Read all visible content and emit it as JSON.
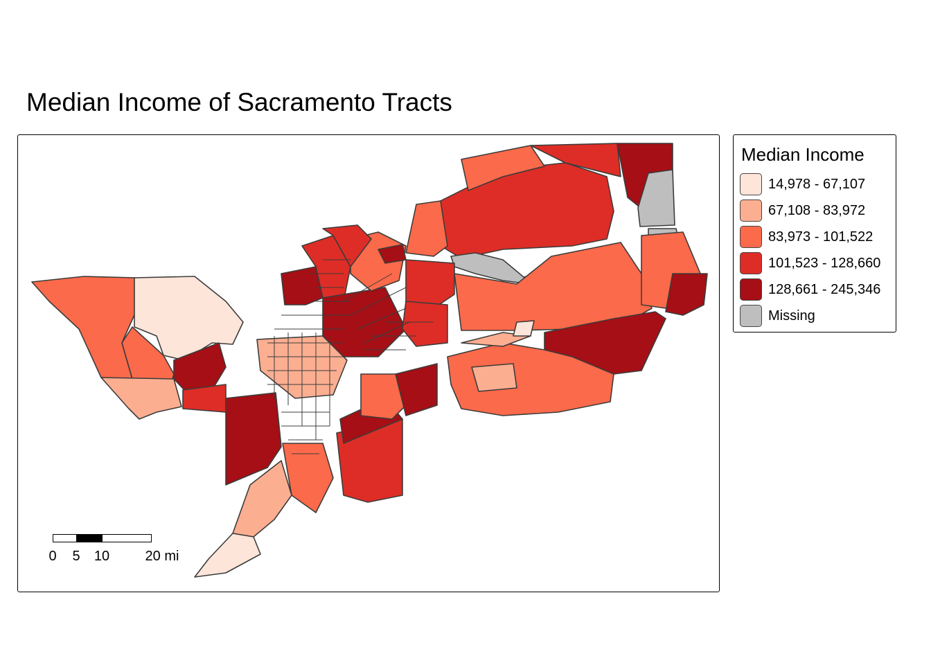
{
  "title": "Median Income of Sacramento Tracts",
  "legend": {
    "title": "Median Income",
    "items": [
      {
        "label": "14,978 - 67,107",
        "color": "#fee5d9"
      },
      {
        "label": "67,108 - 83,972",
        "color": "#fcae91"
      },
      {
        "label": "83,973 - 101,522",
        "color": "#fb6a4a"
      },
      {
        "label": "101,523 - 128,660",
        "color": "#de2d26"
      },
      {
        "label": "128,661 - 245,346",
        "color": "#a50f15"
      },
      {
        "label": "Missing",
        "color": "#bebebe"
      }
    ]
  },
  "scalebar": {
    "labels": [
      "0",
      "5",
      "10",
      "20 mi"
    ]
  },
  "colors": {
    "border": "#3c3c3c",
    "background": "#ffffff"
  }
}
